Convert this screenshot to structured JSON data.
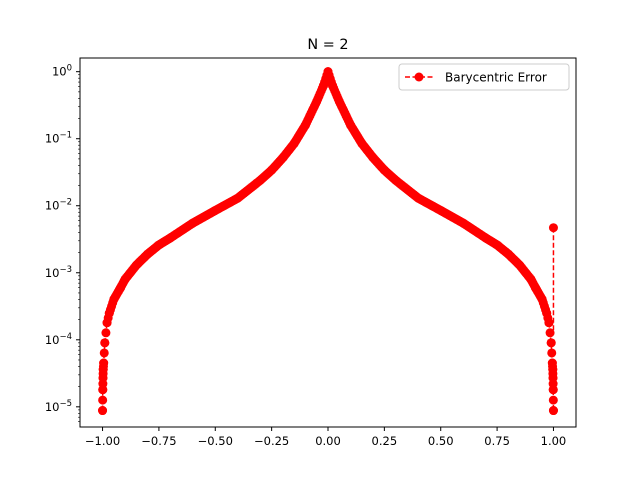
{
  "chart_data": {
    "type": "line",
    "title": "N = 2",
    "xlabel": "",
    "ylabel": "",
    "xlim": [
      -1.1,
      1.1
    ],
    "ylim": [
      5e-06,
      1.6
    ],
    "yscale": "log",
    "grid": false,
    "legend_position": "top-right",
    "x_ticks": [
      -1.0,
      -0.75,
      -0.5,
      -0.25,
      0.0,
      0.25,
      0.5,
      0.75,
      1.0
    ],
    "x_tick_labels": [
      "−1.00",
      "−0.75",
      "−0.50",
      "−0.25",
      "0.00",
      "0.25",
      "0.50",
      "0.75",
      "1.00"
    ],
    "y_ticks": [
      1e-05,
      0.0001,
      0.001,
      0.01,
      0.1,
      1
    ],
    "y_tick_labels": [
      {
        "base": "10",
        "exp": "−5"
      },
      {
        "base": "10",
        "exp": "−4"
      },
      {
        "base": "10",
        "exp": "−3"
      },
      {
        "base": "10",
        "exp": "−2"
      },
      {
        "base": "10",
        "exp": "−1"
      },
      {
        "base": "10",
        "exp": "0"
      }
    ],
    "series": [
      {
        "name": "Barycentric Error",
        "color": "#ff0000",
        "line_style": "dashed",
        "marker": "circle",
        "x": [
          -1.0,
          -0.999,
          -0.998,
          -0.997,
          -0.995,
          -0.99,
          -0.98,
          -0.97,
          -0.95,
          -0.92,
          -0.9,
          -0.85,
          -0.8,
          -0.75,
          -0.7,
          -0.6,
          -0.5,
          -0.4,
          -0.3,
          -0.25,
          -0.2,
          -0.15,
          -0.1,
          -0.05,
          -0.02,
          0.0,
          0.02,
          0.05,
          0.1,
          0.15,
          0.2,
          0.25,
          0.3,
          0.4,
          0.5,
          0.6,
          0.7,
          0.75,
          0.8,
          0.85,
          0.9,
          0.92,
          0.95,
          0.97,
          0.98,
          0.99,
          0.995,
          0.997,
          0.998,
          0.999,
          1.0
        ],
        "y": [
          8.8e-06,
          1.8e-05,
          2.7e-05,
          3.6e-05,
          4.5e-05,
          9e-05,
          0.00018,
          0.00025,
          0.0004,
          0.0006,
          0.0008,
          0.0013,
          0.0019,
          0.0026,
          0.0033,
          0.0055,
          0.0085,
          0.013,
          0.024,
          0.034,
          0.052,
          0.085,
          0.16,
          0.36,
          0.62,
          1.0,
          0.62,
          0.36,
          0.16,
          0.085,
          0.052,
          0.034,
          0.024,
          0.013,
          0.0085,
          0.0055,
          0.0033,
          0.0026,
          0.0019,
          0.0013,
          0.0008,
          0.0006,
          0.0004,
          0.00025,
          0.00018,
          9e-05,
          4.5e-05,
          3.6e-05,
          2.7e-05,
          1.8e-05,
          8.8e-06
        ],
        "outlier": {
          "x": 1.0,
          "y": 0.0047
        }
      }
    ]
  }
}
